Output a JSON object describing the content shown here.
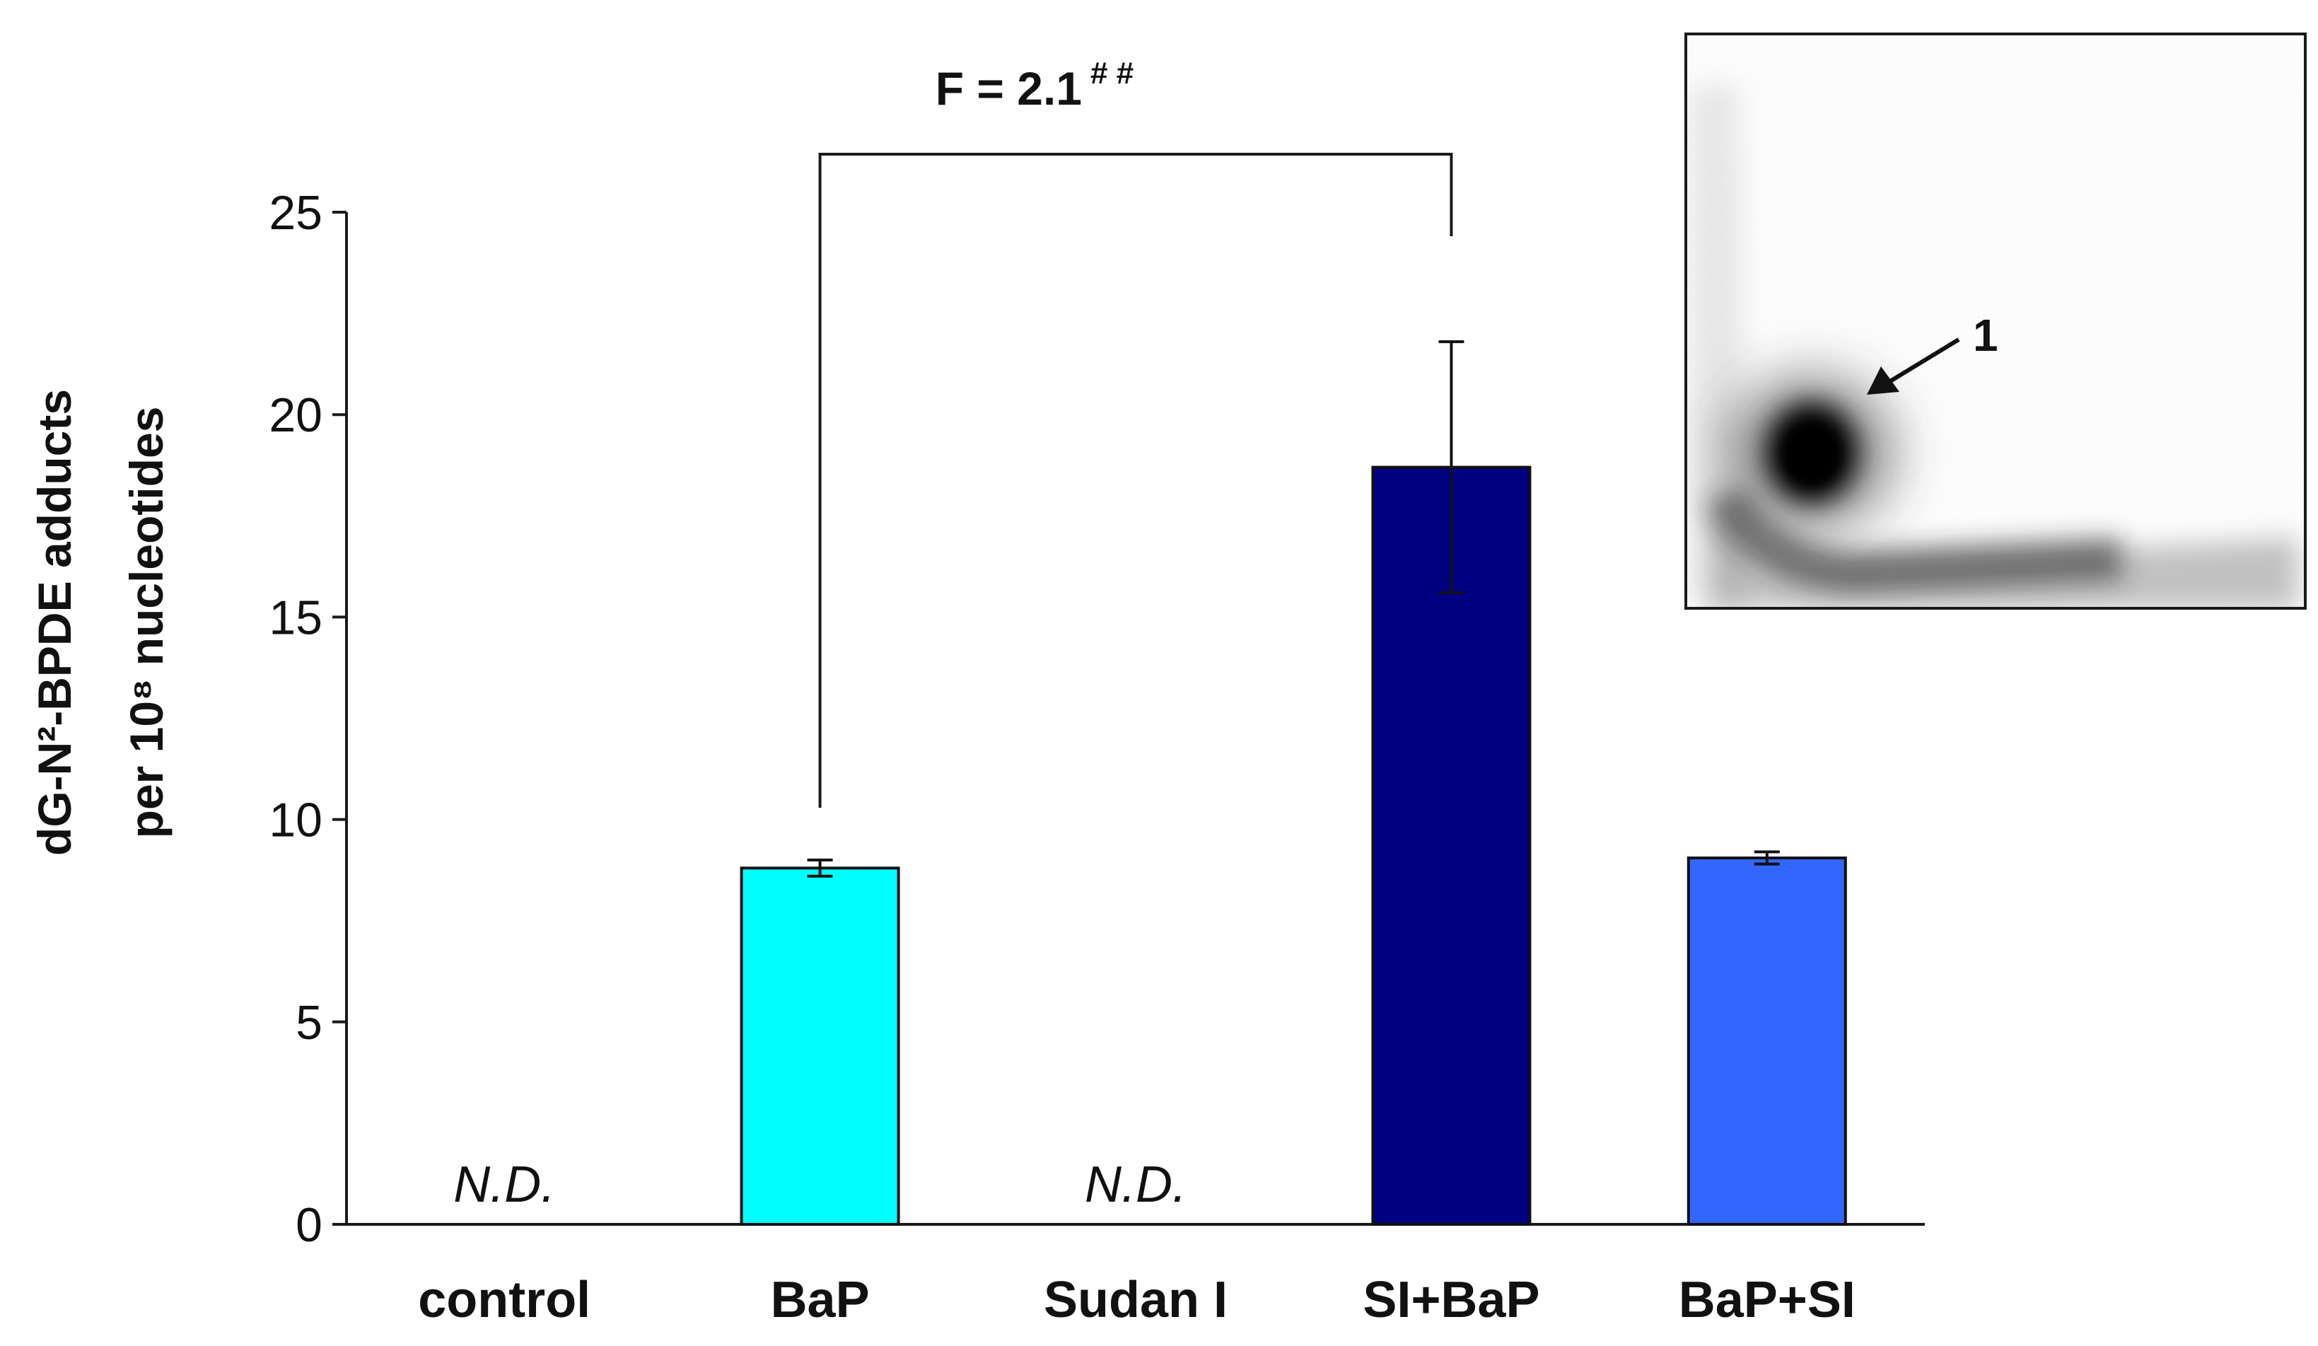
{
  "chart_data": {
    "type": "bar",
    "categories": [
      "control",
      "BaP",
      "Sudan I",
      "SI+BaP",
      "BaP+SI"
    ],
    "values": [
      0,
      8.8,
      0,
      18.7,
      9.05
    ],
    "errors": [
      null,
      0.2,
      null,
      3.1,
      0.15
    ],
    "value_labels": [
      "N.D.",
      "",
      "N.D.",
      "",
      ""
    ],
    "colors": [
      "#ffffff",
      "#00ffff",
      "#ffffff",
      "#000080",
      "#3366ff"
    ],
    "ylabel_line1": "dG-N²-BPDE adducts",
    "ylabel_line2": "per 10⁸ nucleotides",
    "ylim": [
      0,
      25
    ],
    "yticks": [
      0,
      5,
      10,
      15,
      20,
      25
    ],
    "annotation": {
      "text": "F = 2.1",
      "marker": "# #",
      "from_category": "BaP",
      "to_category": "SI+BaP"
    },
    "inset": {
      "description_label": "1"
    }
  }
}
